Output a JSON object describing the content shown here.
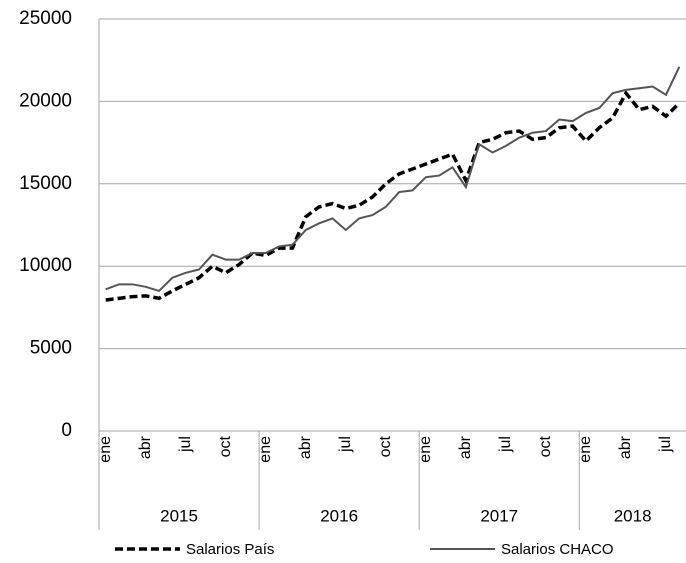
{
  "chart_data": {
    "type": "line",
    "categories": [
      "ene",
      null,
      null,
      "abr",
      null,
      null,
      "jul",
      null,
      null,
      "oct",
      null,
      null,
      "ene",
      null,
      null,
      "abr",
      null,
      null,
      "jul",
      null,
      null,
      "oct",
      null,
      null,
      "ene",
      null,
      null,
      "abr",
      null,
      null,
      "jul",
      null,
      null,
      "oct",
      null,
      null,
      "ene",
      null,
      null,
      "abr",
      null,
      null,
      "jul",
      null
    ],
    "year_groups": [
      {
        "label": "2015",
        "span": 12
      },
      {
        "label": "2016",
        "span": 12
      },
      {
        "label": "2017",
        "span": 12
      },
      {
        "label": "2018",
        "span": 8
      }
    ],
    "series": [
      {
        "name": "Salarios País",
        "color": "#000000",
        "dashed": true,
        "values": [
          7950,
          8050,
          8150,
          8200,
          8050,
          8500,
          8900,
          9300,
          10000,
          9600,
          10100,
          10800,
          10650,
          11100,
          11100,
          13000,
          13600,
          13800,
          13500,
          13700,
          14200,
          15000,
          15600,
          15900,
          16200,
          16500,
          16800,
          15200,
          17500,
          17700,
          18100,
          18200,
          17700,
          17800,
          18400,
          18500,
          17600,
          18400,
          19000,
          20500,
          19500,
          19700,
          19100,
          19900
        ]
      },
      {
        "name": "Salarios CHACO",
        "color": "#555555",
        "dashed": false,
        "values": [
          8600,
          8900,
          8900,
          8750,
          8500,
          9300,
          9600,
          9800,
          10700,
          10400,
          10400,
          10800,
          10800,
          11200,
          11300,
          12200,
          12600,
          12900,
          12200,
          12900,
          13100,
          13600,
          14500,
          14600,
          15400,
          15500,
          16000,
          14800,
          17400,
          16900,
          17300,
          17800,
          18100,
          18200,
          18900,
          18800,
          19300,
          19600,
          20500,
          20700,
          20800,
          20900,
          20400,
          22100
        ]
      }
    ],
    "ylim": [
      0,
      25000
    ],
    "yticks": [
      0,
      5000,
      10000,
      15000,
      20000,
      25000
    ],
    "grid": true,
    "legend": "bottom"
  }
}
